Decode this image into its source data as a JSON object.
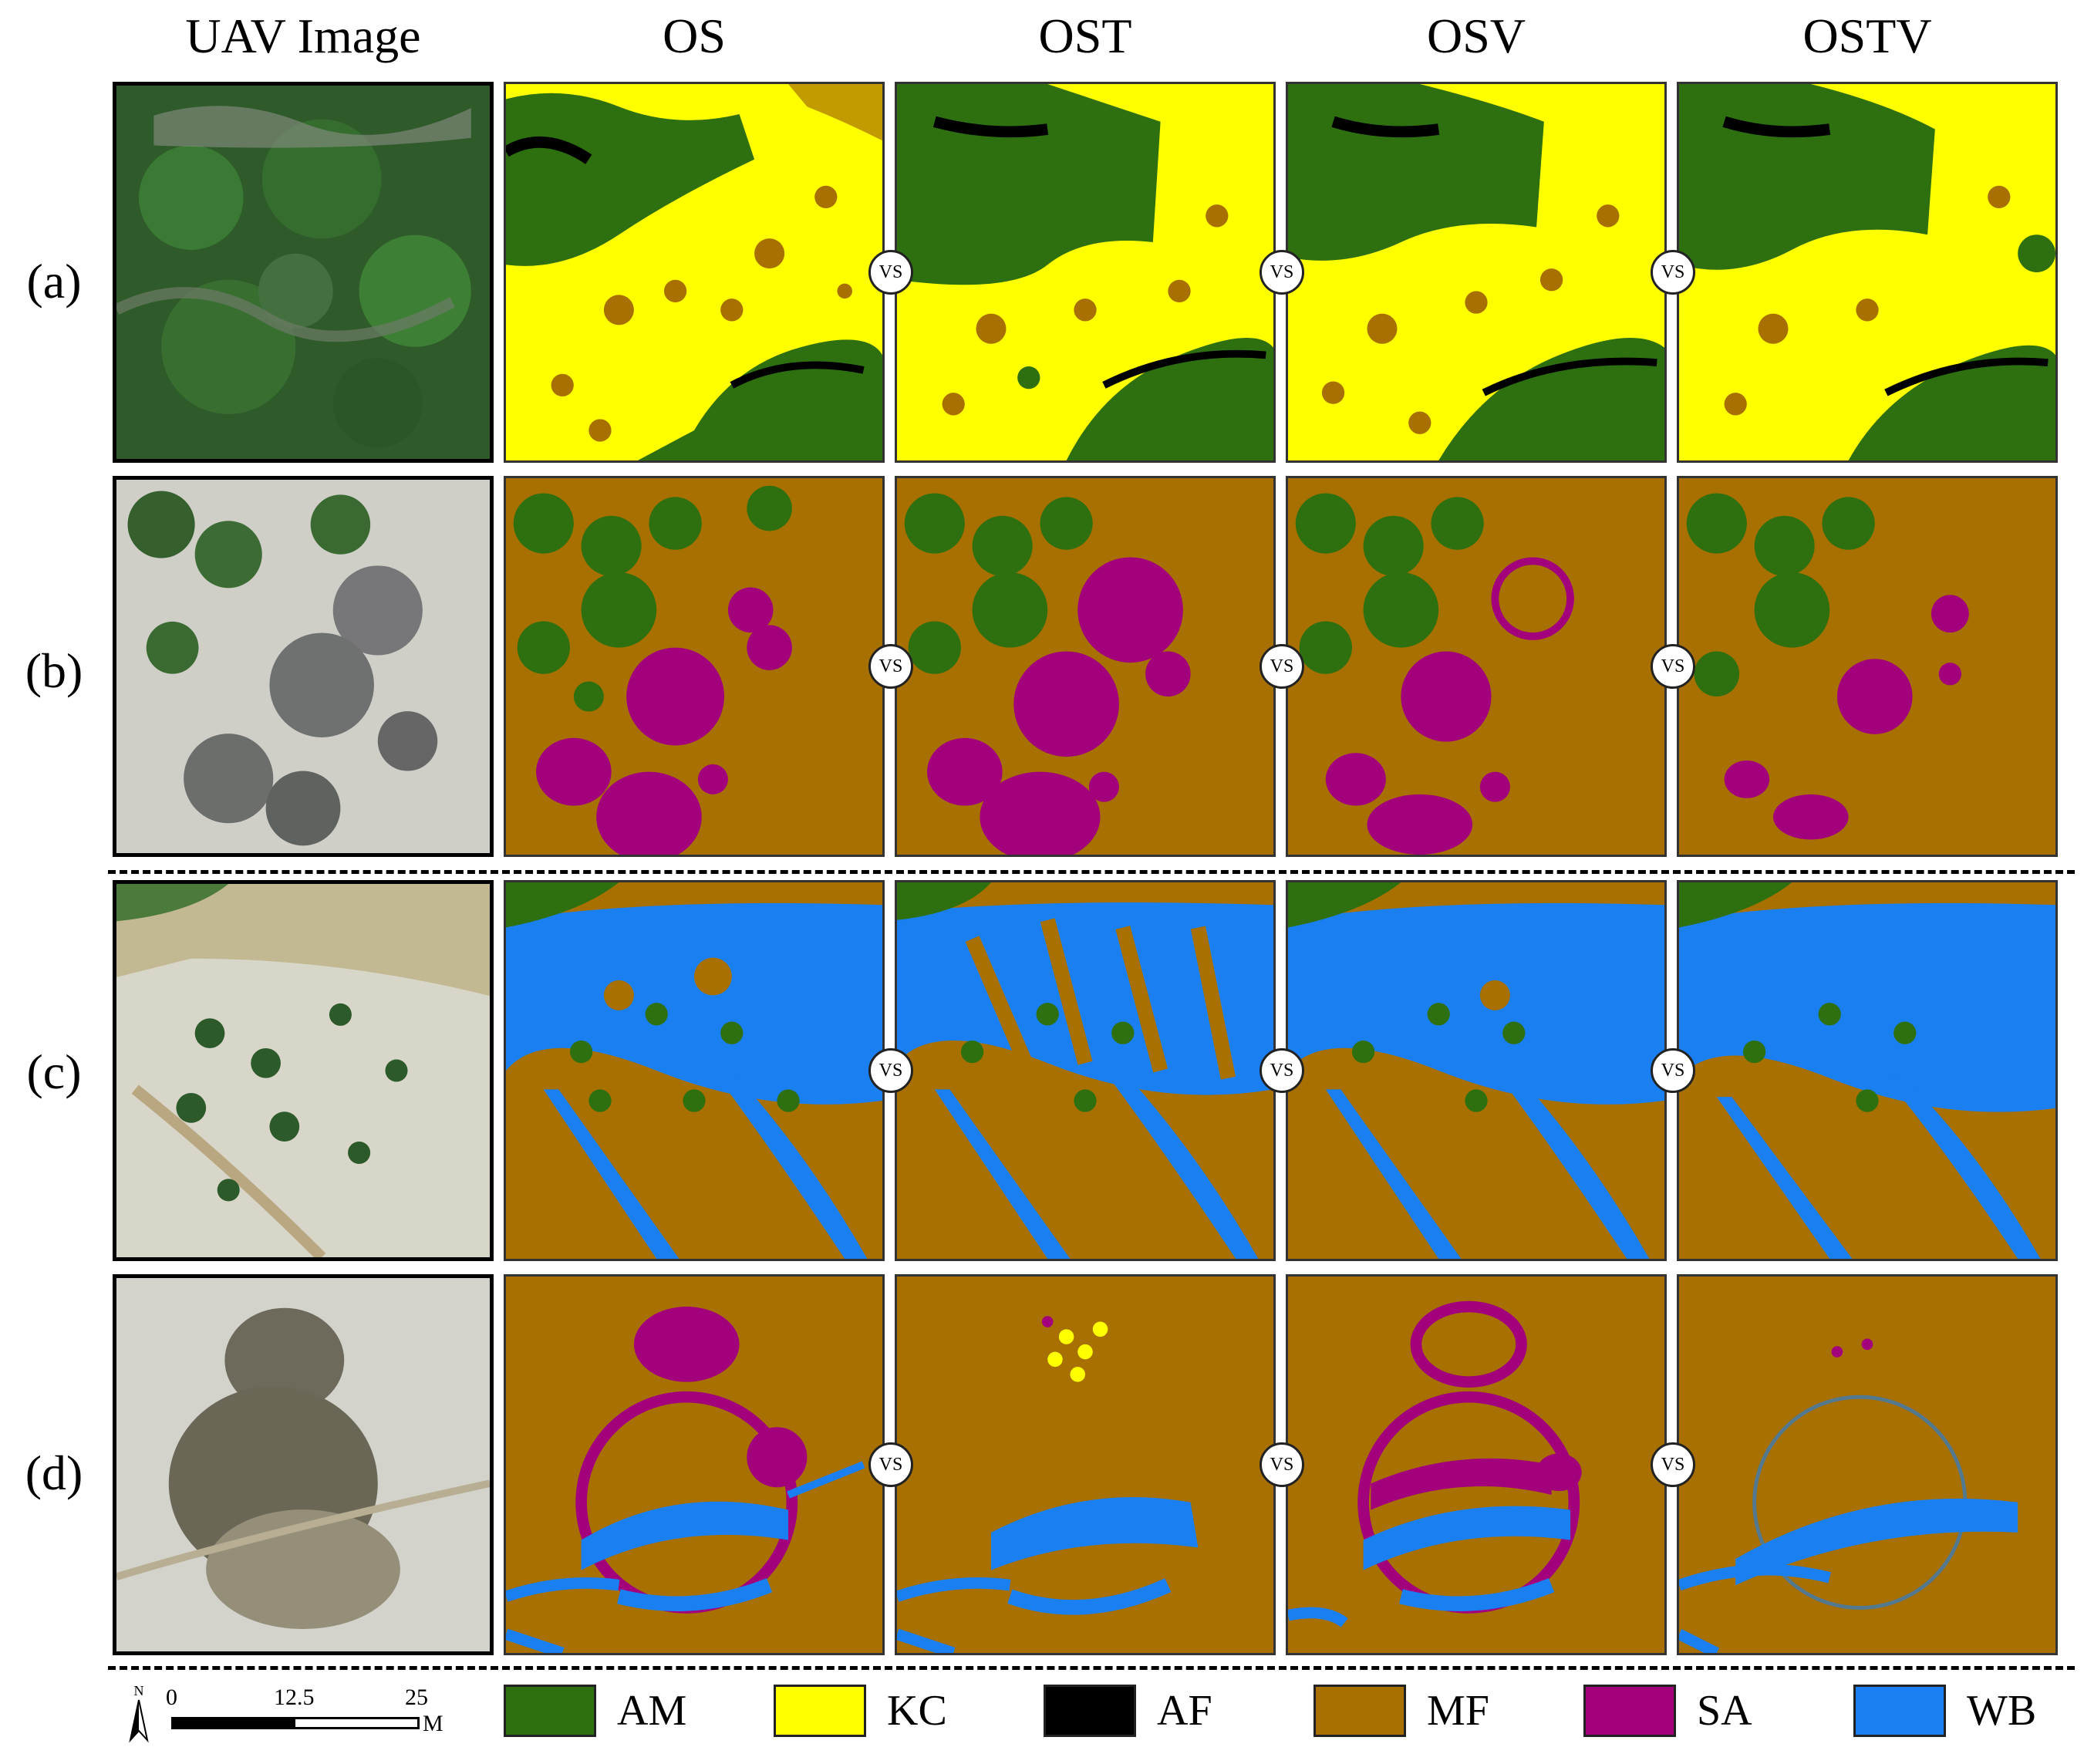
{
  "columns": {
    "uav": "UAV Image",
    "os": "OS",
    "ost": "OST",
    "osv": "OSV",
    "ostv": "OSTV"
  },
  "rows": {
    "a": "(a)",
    "b": "(b)",
    "c": "(c)",
    "d": "(d)"
  },
  "vs_label": "VS",
  "legend": [
    {
      "code": "AM",
      "color": "#2e7010"
    },
    {
      "code": "KC",
      "color": "#ffff00"
    },
    {
      "code": "AF",
      "color": "#000000"
    },
    {
      "code": "MF",
      "color": "#a87000"
    },
    {
      "code": "SA",
      "color": "#a3007c"
    },
    {
      "code": "WB",
      "color": "#1a7ff0"
    }
  ],
  "scale_bar": {
    "n": "N",
    "t0": "0",
    "t1": "12.5",
    "t2": "25",
    "unit": "M"
  }
}
